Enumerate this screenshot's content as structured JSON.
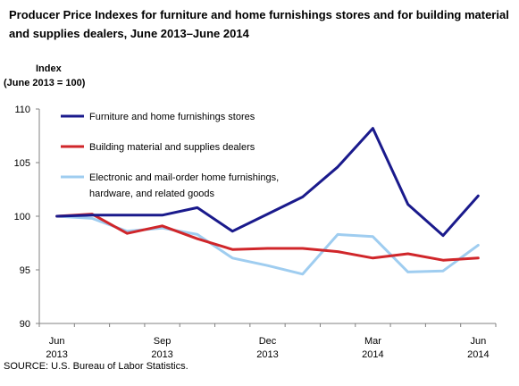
{
  "chart_data": {
    "type": "line",
    "title": "Producer Price Indexes for furniture and home furnishings stores and  for building material and supplies dealers, June 2013–June 2014",
    "ylabel_line1": "Index",
    "ylabel_line2": "(June 2013 = 100)",
    "xlabel": "",
    "ylim": [
      90,
      110
    ],
    "yticks": [
      90,
      95,
      100,
      105,
      110
    ],
    "grid": false,
    "legend_position": "top-left",
    "x": [
      "Jun 2013",
      "Jul 2013",
      "Aug 2013",
      "Sep 2013",
      "Oct 2013",
      "Nov 2013",
      "Dec 2013",
      "Jan 2014",
      "Feb 2014",
      "Mar 2014",
      "Apr 2014",
      "May 2014",
      "Jun 2014"
    ],
    "xtick_labels": [
      {
        "index": 0,
        "line1": "Jun",
        "line2": "2013"
      },
      {
        "index": 3,
        "line1": "Sep",
        "line2": "2013"
      },
      {
        "index": 6,
        "line1": "Dec",
        "line2": "2013"
      },
      {
        "index": 9,
        "line1": "Mar",
        "line2": "2014"
      },
      {
        "index": 12,
        "line1": "Jun",
        "line2": "2014"
      }
    ],
    "series": [
      {
        "name": "Furniture and home furnishings stores",
        "name_lines": [
          "Furniture and home furnishings stores"
        ],
        "color": "#1a1a8c",
        "values": [
          100.0,
          100.1,
          100.1,
          100.1,
          100.8,
          98.6,
          100.2,
          101.8,
          104.6,
          108.2,
          101.1,
          98.2,
          101.9
        ]
      },
      {
        "name": "Building material and supplies dealers",
        "name_lines": [
          "Building material and supplies dealers"
        ],
        "color": "#d0262a",
        "values": [
          100.0,
          100.2,
          98.4,
          99.1,
          97.9,
          96.9,
          97.0,
          97.0,
          96.7,
          96.1,
          96.5,
          95.9,
          96.1
        ]
      },
      {
        "name": "Electronic and mail-order home furnishings, hardware, and related goods",
        "name_lines": [
          "Electronic and mail-order home furnishings,",
          "hardware, and related goods"
        ],
        "color": "#9fcdf0",
        "values": [
          100.0,
          99.8,
          98.6,
          98.9,
          98.3,
          96.1,
          95.4,
          94.6,
          98.3,
          98.1,
          94.8,
          94.9,
          97.3
        ]
      }
    ]
  },
  "source": "SOURCE: U.S. Bureau of Labor Statistics."
}
